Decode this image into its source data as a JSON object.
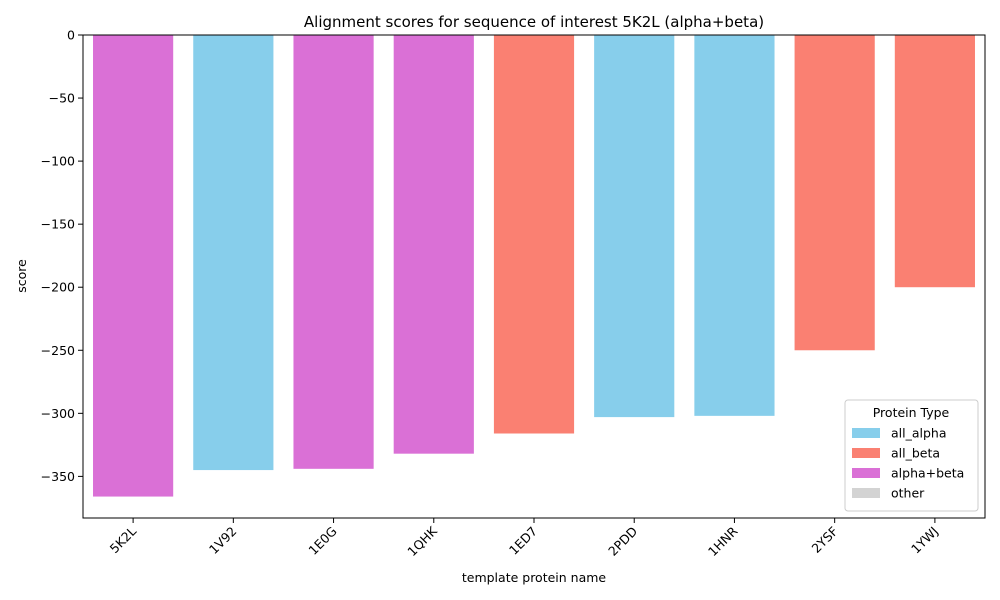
{
  "chart_data": {
    "type": "bar",
    "title": "Alignment scores for sequence of interest 5K2L (alpha+beta)",
    "xlabel": "template protein name",
    "ylabel": "score",
    "ylim": [
      -383,
      0
    ],
    "yticks": [
      0,
      -50,
      -100,
      -150,
      -200,
      -250,
      -300,
      -350
    ],
    "categories": [
      "5K2L",
      "1V92",
      "1E0G",
      "1QHK",
      "1ED7",
      "2PDD",
      "1HNR",
      "2YSF",
      "1YWJ"
    ],
    "values": [
      -366,
      -345,
      -344,
      -332,
      -316,
      -303,
      -302,
      -250,
      -200
    ],
    "bar_types": [
      "alpha+beta",
      "all_alpha",
      "alpha+beta",
      "alpha+beta",
      "all_beta",
      "all_alpha",
      "all_alpha",
      "all_beta",
      "all_beta"
    ],
    "grid": false,
    "legend": {
      "title": "Protein Type",
      "placement": "lower-right",
      "entries": [
        {
          "name": "all_alpha",
          "color": "#87ceeb"
        },
        {
          "name": "all_beta",
          "color": "#fa8072"
        },
        {
          "name": "alpha+beta",
          "color": "#da70d6"
        },
        {
          "name": "other",
          "color": "#d3d3d3"
        }
      ]
    }
  }
}
